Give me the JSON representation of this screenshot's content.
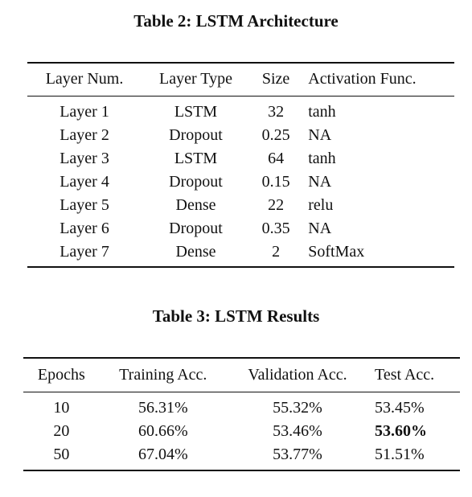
{
  "table2": {
    "caption": "Table 2: LSTM Architecture",
    "headers": [
      "Layer Num.",
      "Layer Type",
      "Size",
      "Activation Func."
    ],
    "rows": [
      [
        "Layer 1",
        "LSTM",
        "32",
        "tanh"
      ],
      [
        "Layer 2",
        "Dropout",
        "0.25",
        "NA"
      ],
      [
        "Layer 3",
        "LSTM",
        "64",
        "tanh"
      ],
      [
        "Layer 4",
        "Dropout",
        "0.15",
        "NA"
      ],
      [
        "Layer 5",
        "Dense",
        "22",
        "relu"
      ],
      [
        "Layer 6",
        "Dropout",
        "0.35",
        "NA"
      ],
      [
        "Layer 7",
        "Dense",
        "2",
        "SoftMax"
      ]
    ]
  },
  "table3": {
    "caption": "Table 3: LSTM Results",
    "headers": [
      "Epochs",
      "Training Acc.",
      "Validation Acc.",
      "Test Acc."
    ],
    "rows": [
      [
        "10",
        "56.31%",
        "55.32%",
        "53.45%"
      ],
      [
        "20",
        "60.66%",
        "53.46%",
        "53.60%"
      ],
      [
        "50",
        "67.04%",
        "53.77%",
        "51.51%"
      ]
    ],
    "bold_cell": "20 / Test Acc."
  }
}
